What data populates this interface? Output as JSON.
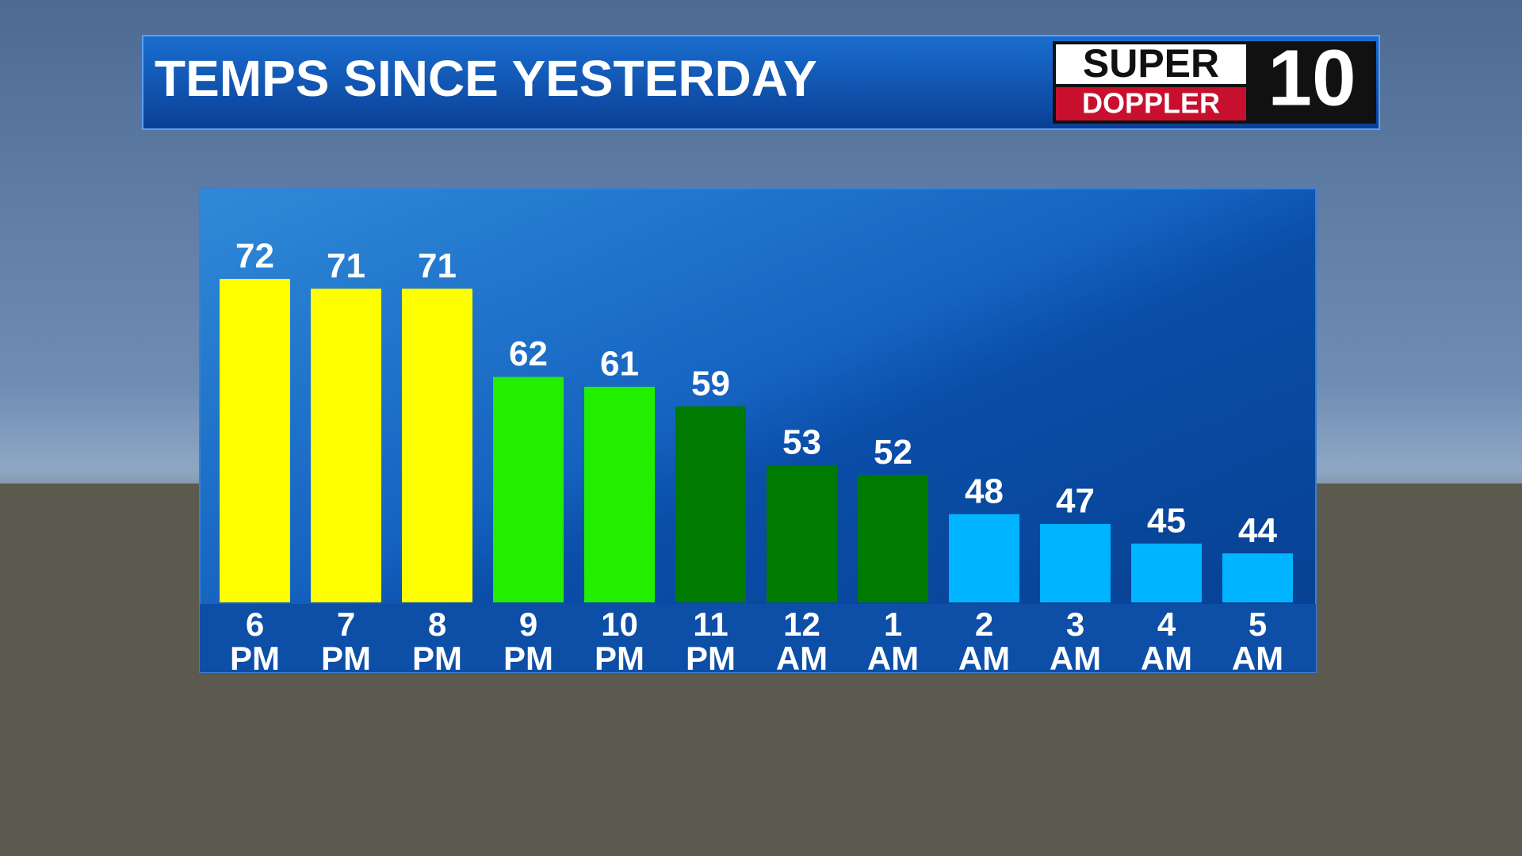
{
  "chart_data": {
    "type": "bar",
    "title": "TEMPS SINCE YESTERDAY",
    "logo": {
      "line1": "SUPER",
      "line2": "DOPPLER",
      "channel": "10"
    },
    "categories": [
      "6 PM",
      "7 PM",
      "8 PM",
      "9 PM",
      "10 PM",
      "11 PM",
      "12 AM",
      "1 AM",
      "2 AM",
      "3 AM",
      "4 AM",
      "5 AM"
    ],
    "values": [
      72,
      71,
      71,
      62,
      61,
      59,
      53,
      52,
      48,
      47,
      45,
      44
    ],
    "colors": [
      "#ffff00",
      "#ffff00",
      "#ffff00",
      "#22ee00",
      "#22ee00",
      "#007a00",
      "#007a00",
      "#007a00",
      "#00b4ff",
      "#00b4ff",
      "#00b4ff",
      "#00b4ff"
    ],
    "ylim": [
      39,
      80
    ]
  }
}
